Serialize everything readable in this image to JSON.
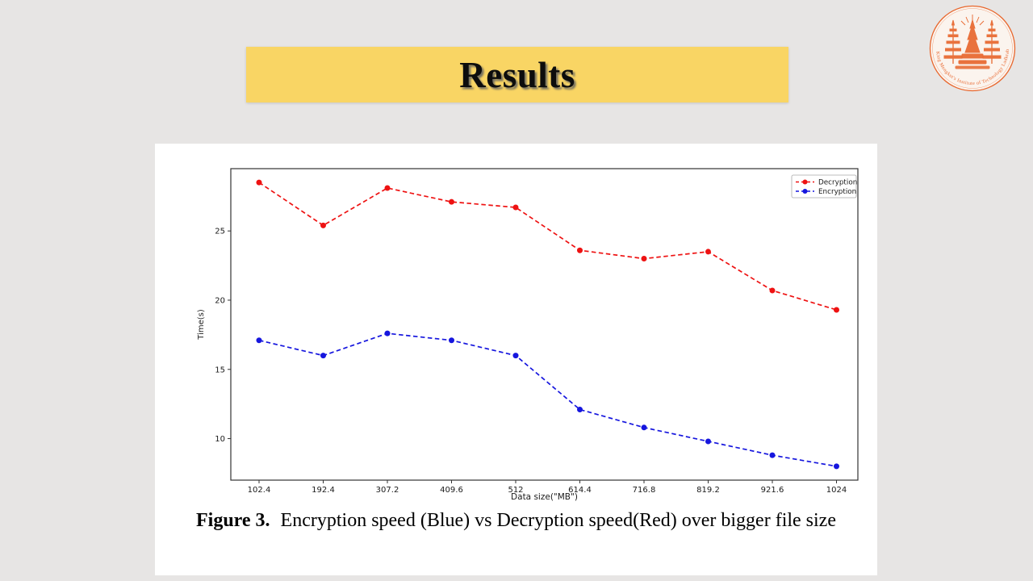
{
  "slide": {
    "title": "Results"
  },
  "logo": {
    "ring_text": "King Mongkut's Institute of Technology Ladkrabang"
  },
  "figure": {
    "label": "Figure 3.",
    "caption": "Encryption speed (Blue) vs Decryption speed(Red) over bigger file size"
  },
  "colors": {
    "slide_bg": "#E7E5E4",
    "banner": "#F9D564",
    "panel": "#FFFFFF",
    "decryption_red": "#EE1212",
    "encryption_blue": "#1616DE",
    "logo_orange": "#E8672E",
    "axis": "#333333"
  },
  "chart_data": {
    "type": "line",
    "title": "",
    "xlabel": "Data size(\"MB\")",
    "ylabel": "Time(s)",
    "categories": [
      "102.4",
      "192.4",
      "307.2",
      "409.6",
      "512",
      "614.4",
      "716.8",
      "819.2",
      "921.6",
      "1024"
    ],
    "yticks": [
      10,
      15,
      20,
      25
    ],
    "ylim": [
      7.0,
      29.5
    ],
    "grid": false,
    "legend_position": "upper right",
    "series": [
      {
        "name": "Decryption",
        "color": "#EE1212",
        "values": [
          28.5,
          25.4,
          28.1,
          27.1,
          26.7,
          23.6,
          23.0,
          23.5,
          20.7,
          19.3
        ]
      },
      {
        "name": "Encryption",
        "color": "#1616DE",
        "values": [
          17.1,
          16.0,
          17.6,
          17.1,
          16.0,
          12.1,
          10.8,
          9.8,
          8.8,
          8.0
        ]
      }
    ]
  }
}
